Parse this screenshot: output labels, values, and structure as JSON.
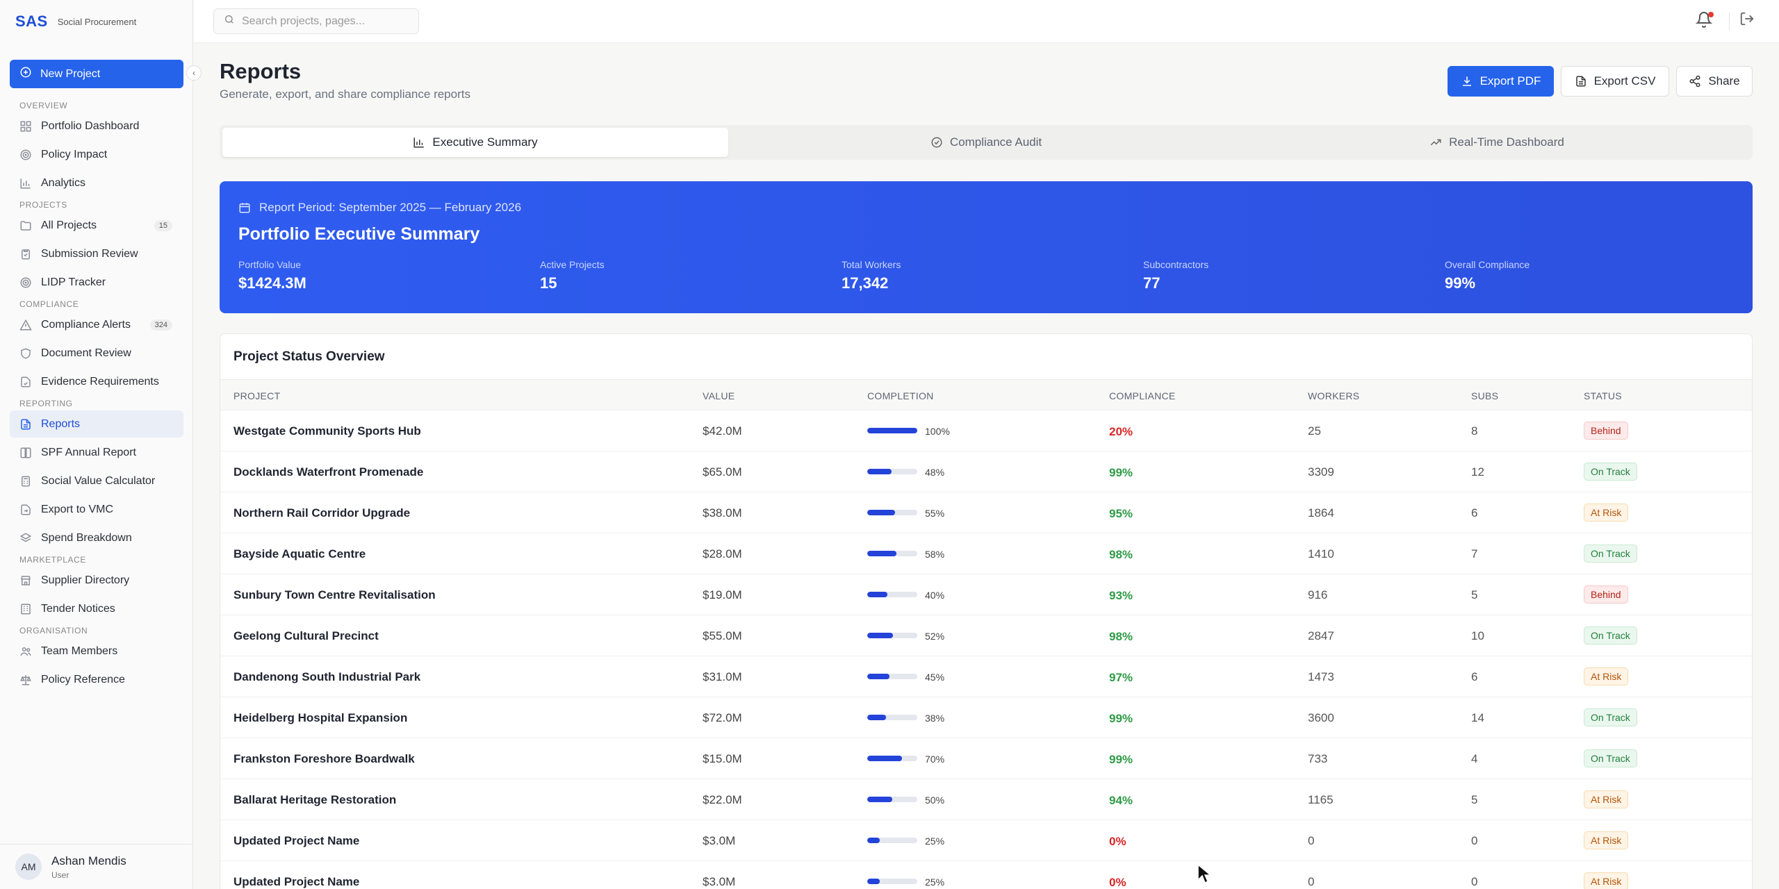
{
  "brand": {
    "logo": "SAS",
    "name": "Social Procurement"
  },
  "sidebar": {
    "new_project_label": "New Project",
    "sections": [
      {
        "title": "OVERVIEW",
        "items": [
          {
            "label": "Portfolio Dashboard",
            "icon": "grid-icon"
          },
          {
            "label": "Policy Impact",
            "icon": "target-icon"
          },
          {
            "label": "Analytics",
            "icon": "bar-chart-icon"
          }
        ]
      },
      {
        "title": "PROJECTS",
        "items": [
          {
            "label": "All Projects",
            "icon": "folder-icon",
            "badge": "15"
          },
          {
            "label": "Submission Review",
            "icon": "clipboard-check-icon"
          },
          {
            "label": "LIDP Tracker",
            "icon": "target-icon"
          }
        ]
      },
      {
        "title": "COMPLIANCE",
        "items": [
          {
            "label": "Compliance Alerts",
            "icon": "alert-triangle-icon",
            "badge": "324"
          },
          {
            "label": "Document Review",
            "icon": "shield-icon"
          },
          {
            "label": "Evidence Requirements",
            "icon": "file-check-icon"
          }
        ]
      },
      {
        "title": "REPORTING",
        "items": [
          {
            "label": "Reports",
            "icon": "file-text-icon",
            "active": true
          },
          {
            "label": "SPF Annual Report",
            "icon": "book-icon"
          },
          {
            "label": "Social Value Calculator",
            "icon": "calculator-icon"
          },
          {
            "label": "Export to VMC",
            "icon": "file-export-icon"
          },
          {
            "label": "Spend Breakdown",
            "icon": "layers-icon"
          }
        ]
      },
      {
        "title": "MARKETPLACE",
        "items": [
          {
            "label": "Supplier Directory",
            "icon": "store-icon"
          },
          {
            "label": "Tender Notices",
            "icon": "building-icon"
          }
        ]
      },
      {
        "title": "ORGANISATION",
        "items": [
          {
            "label": "Team Members",
            "icon": "users-icon"
          },
          {
            "label": "Policy Reference",
            "icon": "scale-icon"
          }
        ]
      }
    ]
  },
  "user": {
    "initials": "AM",
    "name": "Ashan Mendis",
    "role": "User"
  },
  "topbar": {
    "search_placeholder": "Search projects, pages..."
  },
  "header": {
    "title": "Reports",
    "subtitle": "Generate, export, and share compliance reports",
    "export_pdf": "Export PDF",
    "export_csv": "Export CSV",
    "share": "Share"
  },
  "tabs": [
    {
      "label": "Executive Summary",
      "icon": "bar-chart-icon",
      "active": true
    },
    {
      "label": "Compliance Audit",
      "icon": "check-circle-icon"
    },
    {
      "label": "Real-Time Dashboard",
      "icon": "trending-up-icon"
    }
  ],
  "summary": {
    "period": "Report Period: September 2025 — February 2026",
    "title": "Portfolio Executive Summary",
    "stats": [
      {
        "label": "Portfolio Value",
        "value": "$1424.3M"
      },
      {
        "label": "Active Projects",
        "value": "15"
      },
      {
        "label": "Total Workers",
        "value": "17,342"
      },
      {
        "label": "Subcontractors",
        "value": "77"
      },
      {
        "label": "Overall Compliance",
        "value": "99%"
      }
    ]
  },
  "table": {
    "title": "Project Status Overview",
    "columns": [
      "PROJECT",
      "VALUE",
      "COMPLETION",
      "COMPLIANCE",
      "WORKERS",
      "SUBS",
      "STATUS"
    ],
    "rows": [
      {
        "project": "Westgate Community Sports Hub",
        "value": "$42.0M",
        "completion": 100,
        "completion_label": "100%",
        "compliance": "20%",
        "compliance_level": "bad",
        "workers": "25",
        "subs": "8",
        "status": "Behind"
      },
      {
        "project": "Docklands Waterfront Promenade",
        "value": "$65.0M",
        "completion": 48,
        "completion_label": "48%",
        "compliance": "99%",
        "compliance_level": "good",
        "workers": "3309",
        "subs": "12",
        "status": "On Track"
      },
      {
        "project": "Northern Rail Corridor Upgrade",
        "value": "$38.0M",
        "completion": 55,
        "completion_label": "55%",
        "compliance": "95%",
        "compliance_level": "good",
        "workers": "1864",
        "subs": "6",
        "status": "At Risk"
      },
      {
        "project": "Bayside Aquatic Centre",
        "value": "$28.0M",
        "completion": 58,
        "completion_label": "58%",
        "compliance": "98%",
        "compliance_level": "good",
        "workers": "1410",
        "subs": "7",
        "status": "On Track"
      },
      {
        "project": "Sunbury Town Centre Revitalisation",
        "value": "$19.0M",
        "completion": 40,
        "completion_label": "40%",
        "compliance": "93%",
        "compliance_level": "good",
        "workers": "916",
        "subs": "5",
        "status": "Behind"
      },
      {
        "project": "Geelong Cultural Precinct",
        "value": "$55.0M",
        "completion": 52,
        "completion_label": "52%",
        "compliance": "98%",
        "compliance_level": "good",
        "workers": "2847",
        "subs": "10",
        "status": "On Track"
      },
      {
        "project": "Dandenong South Industrial Park",
        "value": "$31.0M",
        "completion": 45,
        "completion_label": "45%",
        "compliance": "97%",
        "compliance_level": "good",
        "workers": "1473",
        "subs": "6",
        "status": "At Risk"
      },
      {
        "project": "Heidelberg Hospital Expansion",
        "value": "$72.0M",
        "completion": 38,
        "completion_label": "38%",
        "compliance": "99%",
        "compliance_level": "good",
        "workers": "3600",
        "subs": "14",
        "status": "On Track"
      },
      {
        "project": "Frankston Foreshore Boardwalk",
        "value": "$15.0M",
        "completion": 70,
        "completion_label": "70%",
        "compliance": "99%",
        "compliance_level": "good",
        "workers": "733",
        "subs": "4",
        "status": "On Track"
      },
      {
        "project": "Ballarat Heritage Restoration",
        "value": "$22.0M",
        "completion": 50,
        "completion_label": "50%",
        "compliance": "94%",
        "compliance_level": "good",
        "workers": "1165",
        "subs": "5",
        "status": "At Risk"
      },
      {
        "project": "Updated Project Name",
        "value": "$3.0M",
        "completion": 25,
        "completion_label": "25%",
        "compliance": "0%",
        "compliance_level": "bad",
        "workers": "0",
        "subs": "0",
        "status": "At Risk"
      },
      {
        "project": "Updated Project Name",
        "value": "$3.0M",
        "completion": 25,
        "completion_label": "25%",
        "compliance": "0%",
        "compliance_level": "bad",
        "workers": "0",
        "subs": "0",
        "status": "At Risk"
      }
    ]
  },
  "colors": {
    "accent": "#2563eb",
    "banner": "#2f5cf0",
    "good": "#2e9b45",
    "bad": "#d92626"
  }
}
